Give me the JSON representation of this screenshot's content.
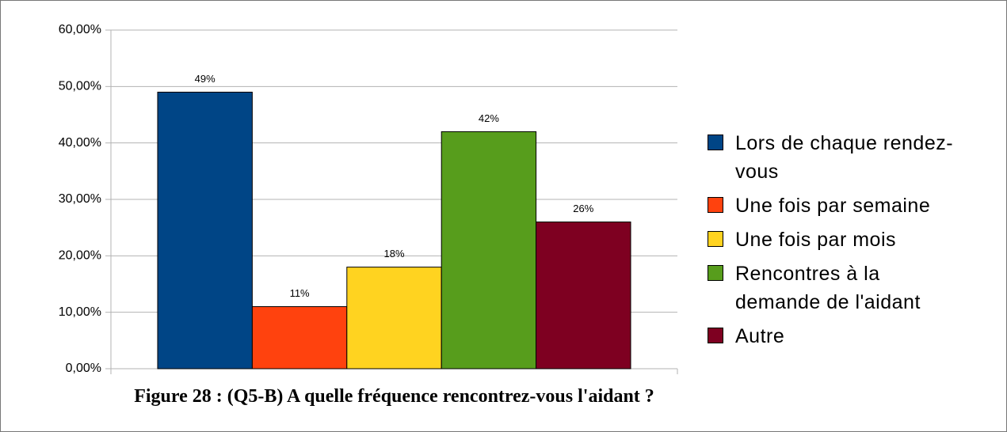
{
  "chart_data": {
    "type": "bar",
    "title": "Figure 28 : (Q5-B) A quelle fréquence rencontrez-vous l'aidant ?",
    "categories": [
      null
    ],
    "series": [
      {
        "name": "Lors de chaque rendez-vous",
        "color": "#004586",
        "values": [
          49
        ],
        "value_labels": [
          "49%"
        ]
      },
      {
        "name": "Une fois par semaine",
        "color": "#ff420e",
        "values": [
          11
        ],
        "value_labels": [
          "11%"
        ]
      },
      {
        "name": "Une fois par mois",
        "color": "#ffd320",
        "values": [
          18
        ],
        "value_labels": [
          "18%"
        ]
      },
      {
        "name": "Rencontres à la demande de l'aidant",
        "color": "#579d1c",
        "values": [
          42
        ],
        "value_labels": [
          "42%"
        ]
      },
      {
        "name": "Autre",
        "color": "#7e0021",
        "values": [
          26
        ],
        "value_labels": [
          "26%"
        ]
      }
    ],
    "ylim": [
      0,
      60
    ],
    "yticks": [
      {
        "value": 0,
        "label": "0,00%"
      },
      {
        "value": 10,
        "label": "10,00%"
      },
      {
        "value": 20,
        "label": "20,00%"
      },
      {
        "value": 30,
        "label": "30,00%"
      },
      {
        "value": 40,
        "label": "40,00%"
      },
      {
        "value": 50,
        "label": "50,00%"
      },
      {
        "value": 60,
        "label": "60,00%"
      }
    ],
    "grid": true,
    "legend": "right"
  }
}
